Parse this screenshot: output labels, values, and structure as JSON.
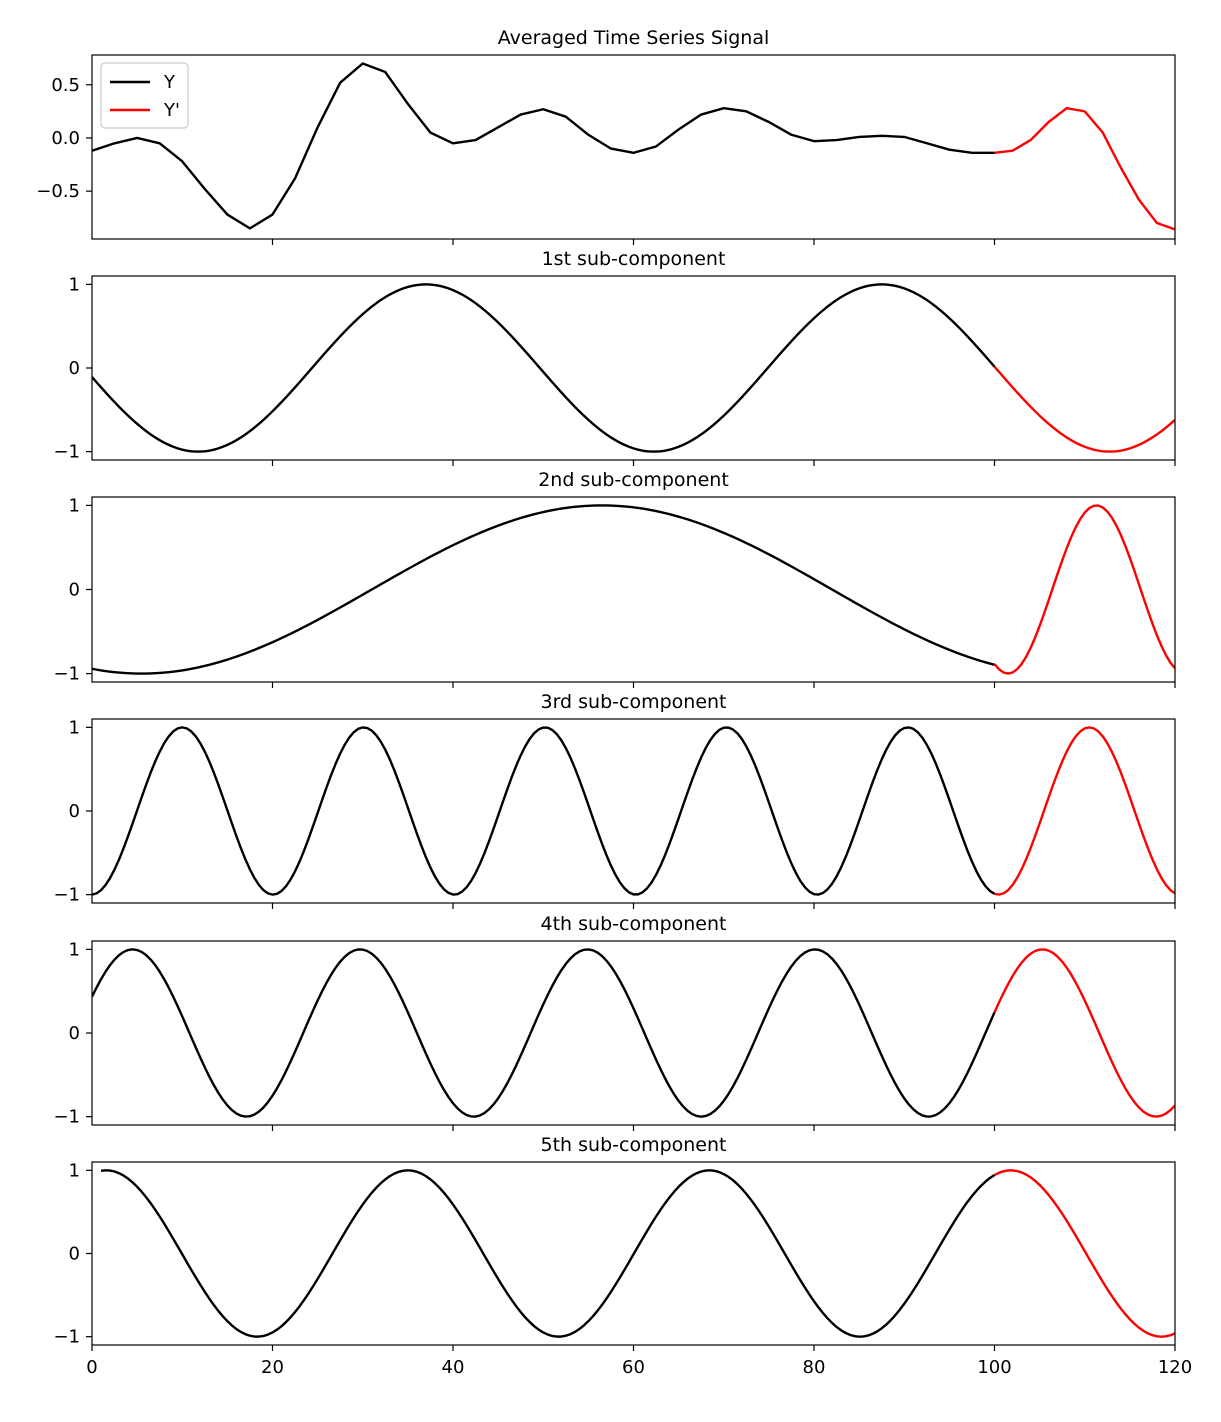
{
  "chart_data": [
    {
      "type": "line",
      "title": "Averaged Time Series Signal",
      "xlim": [
        0,
        120
      ],
      "ylim": [
        -0.95,
        0.78
      ],
      "yticks": [
        -0.5,
        0.0,
        0.5
      ],
      "ytick_labels": [
        "−0.5",
        "0.0",
        "0.5"
      ],
      "xticks": [
        20,
        40,
        60,
        80,
        100,
        120
      ],
      "show_xtick_labels": false,
      "legend": {
        "placement": "top-left",
        "entries": [
          "Y",
          "Y'"
        ]
      },
      "series": [
        {
          "name": "Y",
          "color": "#000000",
          "x": [
            0,
            2.5,
            5,
            7.5,
            10,
            12.5,
            15,
            17.5,
            20,
            22.5,
            25,
            27.5,
            30,
            32.5,
            35,
            37.5,
            40,
            42.5,
            45,
            47.5,
            50,
            52.5,
            55,
            57.5,
            60,
            62.5,
            65,
            67.5,
            70,
            72.5,
            75,
            77.5,
            80,
            82.5,
            85,
            87.5,
            90,
            92.5,
            95,
            97.5,
            100
          ],
          "y": [
            -0.12,
            -0.05,
            0.0,
            -0.05,
            -0.22,
            -0.48,
            -0.72,
            -0.85,
            -0.72,
            -0.38,
            0.1,
            0.52,
            0.7,
            0.62,
            0.32,
            0.05,
            -0.05,
            -0.02,
            0.1,
            0.22,
            0.27,
            0.2,
            0.03,
            -0.1,
            -0.14,
            -0.08,
            0.08,
            0.22,
            0.28,
            0.25,
            0.15,
            0.03,
            -0.03,
            -0.02,
            0.01,
            0.02,
            0.01,
            -0.05,
            -0.11,
            -0.14,
            -0.14
          ]
        },
        {
          "name": "Y'",
          "color": "#ff0000",
          "x": [
            100,
            102,
            104,
            106,
            108,
            110,
            112,
            114,
            116,
            118,
            120
          ],
          "y": [
            -0.14,
            -0.12,
            -0.02,
            0.15,
            0.28,
            0.25,
            0.05,
            -0.28,
            -0.58,
            -0.8,
            -0.86
          ]
        }
      ]
    },
    {
      "type": "line",
      "title": "1st sub-component",
      "xlim": [
        0,
        120
      ],
      "ylim": [
        -1.1,
        1.1
      ],
      "yticks": [
        -1,
        0,
        1
      ],
      "ytick_labels": [
        "−1",
        "0",
        "1"
      ],
      "xticks": [
        20,
        40,
        60,
        80,
        100,
        120
      ],
      "show_xtick_labels": false,
      "model": {
        "kind": "sine",
        "amplitude": 1.0,
        "period": 50.5,
        "peak_x": 37,
        "start_y": -0.1
      },
      "split_x": 100,
      "colors": {
        "observed": "#000000",
        "forecast": "#ff0000"
      },
      "points": {
        "x": [
          0,
          12,
          37,
          62,
          87,
          100,
          112.5,
          120
        ],
        "y": [
          -0.1,
          -1.0,
          1.0,
          -1.0,
          1.0,
          0.03,
          -1.0,
          -0.6
        ]
      }
    },
    {
      "type": "line",
      "title": "2nd sub-component",
      "xlim": [
        0,
        120
      ],
      "ylim": [
        -1.1,
        1.1
      ],
      "yticks": [
        -1,
        0,
        1
      ],
      "ytick_labels": [
        "−1",
        "0",
        "1"
      ],
      "xticks": [
        20,
        40,
        60,
        80,
        100,
        120
      ],
      "show_xtick_labels": false,
      "segments": [
        {
          "role": "observed",
          "color": "#000000",
          "kind": "sine",
          "amplitude": 1.0,
          "period": 102,
          "peak_x": 56.5,
          "x_range": [
            0,
            100
          ]
        },
        {
          "role": "forecast",
          "color": "#ff0000",
          "kind": "sine",
          "amplitude": 1.0,
          "period": 19.6,
          "peak_x": 111.3,
          "x_range": [
            100,
            120
          ]
        }
      ],
      "points": {
        "x": [
          0,
          6,
          56.5,
          100,
          101.5,
          111.3,
          120
        ],
        "y": [
          -0.92,
          -1.0,
          1.0,
          -0.9,
          -1.0,
          1.0,
          -0.9
        ]
      }
    },
    {
      "type": "line",
      "title": "3rd sub-component",
      "xlim": [
        0,
        120
      ],
      "ylim": [
        -1.1,
        1.1
      ],
      "yticks": [
        -1,
        0,
        1
      ],
      "ytick_labels": [
        "−1",
        "0",
        "1"
      ],
      "xticks": [
        20,
        40,
        60,
        80,
        100,
        120
      ],
      "show_xtick_labels": false,
      "model": {
        "kind": "sine",
        "amplitude": 1.0,
        "period": 20.1,
        "peak_x": 10
      },
      "split_x": 100,
      "colors": {
        "observed": "#000000",
        "forecast": "#ff0000"
      },
      "points": {
        "x": [
          0,
          10,
          20,
          30,
          40,
          50,
          60,
          70,
          80,
          90,
          100,
          111,
          120
        ],
        "y": [
          -0.97,
          1.0,
          -1.0,
          1.0,
          -1.0,
          1.0,
          -1.0,
          1.0,
          -1.0,
          1.0,
          -0.97,
          1.0,
          -0.97
        ]
      }
    },
    {
      "type": "line",
      "title": "4th sub-component",
      "xlim": [
        0,
        120
      ],
      "ylim": [
        -1.1,
        1.1
      ],
      "yticks": [
        -1,
        0,
        1
      ],
      "ytick_labels": [
        "−1",
        "0",
        "1"
      ],
      "xticks": [
        20,
        40,
        60,
        80,
        100,
        120
      ],
      "show_xtick_labels": false,
      "model": {
        "kind": "sine",
        "amplitude": 1.0,
        "period": 25.2,
        "peak_x": 4.5
      },
      "split_x": 100,
      "colors": {
        "observed": "#000000",
        "forecast": "#ff0000"
      },
      "points": {
        "x": [
          0,
          4.5,
          17,
          29.5,
          42,
          54.5,
          67,
          80,
          92.5,
          100,
          105.5,
          118,
          120
        ],
        "y": [
          0.45,
          1.0,
          -1.0,
          1.0,
          -1.0,
          1.0,
          -1.0,
          1.0,
          -1.0,
          0.2,
          1.0,
          -1.0,
          -0.85
        ]
      }
    },
    {
      "type": "line",
      "title": "5th sub-component",
      "xlim": [
        0,
        120
      ],
      "ylim": [
        -1.1,
        1.1
      ],
      "yticks": [
        -1,
        0,
        1
      ],
      "ytick_labels": [
        "−1",
        "0",
        "1"
      ],
      "xticks": [
        0,
        20,
        40,
        60,
        80,
        100,
        120
      ],
      "xtick_labels": [
        "0",
        "20",
        "40",
        "60",
        "80",
        "100",
        "120"
      ],
      "show_xtick_labels": true,
      "model": {
        "kind": "sine",
        "amplitude": 1.0,
        "period": 33.4,
        "peak_x": 35
      },
      "x_start": 1,
      "split_x": 100,
      "colors": {
        "observed": "#000000",
        "forecast": "#ff0000"
      },
      "points": {
        "x": [
          1,
          18.5,
          35,
          51.5,
          68.5,
          85,
          101.5,
          118.5,
          120
        ],
        "y": [
          1.0,
          -1.0,
          1.0,
          -1.0,
          1.0,
          -1.0,
          1.0,
          -1.0,
          -0.95
        ]
      }
    }
  ]
}
